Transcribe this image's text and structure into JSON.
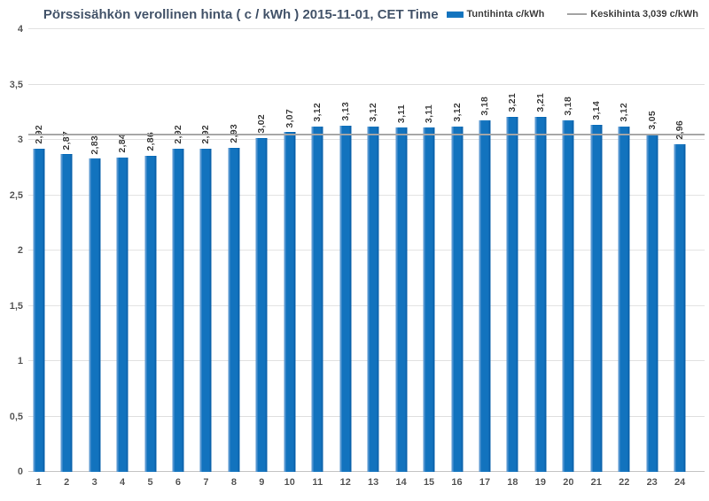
{
  "header": {
    "title": "Pörssisähkön verollinen hinta ( c / kWh ) 2015-11-01, CET Time"
  },
  "legend": {
    "series_label": "Tuntihinta c/kWh",
    "average_label": "Keskihinta 3,039 c/kWh"
  },
  "chart_data": {
    "type": "bar",
    "title": "Pörssisähkön verollinen hinta ( c / kWh ) 2015-11-01, CET Time",
    "categories": [
      "1",
      "2",
      "3",
      "4",
      "5",
      "6",
      "7",
      "8",
      "9",
      "10",
      "11",
      "12",
      "13",
      "14",
      "15",
      "16",
      "17",
      "18",
      "19",
      "20",
      "21",
      "22",
      "23",
      "24"
    ],
    "values": [
      2.92,
      2.87,
      2.83,
      2.84,
      2.86,
      2.92,
      2.92,
      2.93,
      3.02,
      3.07,
      3.12,
      3.13,
      3.12,
      3.11,
      3.11,
      3.12,
      3.18,
      3.21,
      3.21,
      3.18,
      3.14,
      3.12,
      3.05,
      2.96
    ],
    "value_labels": [
      "2,92",
      "2,87",
      "2,83",
      "2,84",
      "2,86",
      "2,92",
      "2,92",
      "2,93",
      "3,02",
      "3,07",
      "3,12",
      "3,13",
      "3,12",
      "3,11",
      "3,11",
      "3,12",
      "3,18",
      "3,21",
      "3,21",
      "3,18",
      "3,14",
      "3,12",
      "3,05",
      "2,96"
    ],
    "series_name": "Tuntihinta c/kWh",
    "average": 3.039,
    "average_label": "Keskihinta 3,039 c/kWh",
    "xlabel": "",
    "ylabel": "",
    "ylim": [
      0,
      4
    ],
    "y_ticks": [
      {
        "value": 0,
        "label": "0"
      },
      {
        "value": 0.5,
        "label": "0,5"
      },
      {
        "value": 1,
        "label": "1"
      },
      {
        "value": 1.5,
        "label": "1,5"
      },
      {
        "value": 2,
        "label": "2"
      },
      {
        "value": 2.5,
        "label": "2,5"
      },
      {
        "value": 3,
        "label": "3"
      },
      {
        "value": 3.5,
        "label": "3,5"
      },
      {
        "value": 4,
        "label": "4"
      }
    ],
    "grid": "horizontal",
    "legend_position": "top-right",
    "colors": {
      "bar": "#1273BE",
      "bar_highlight": "#5797D1",
      "bar_dark_edge": "#0D64AD",
      "average_line": "#A6A6A6",
      "gridline": "#E2E2E2",
      "axis_line": "#C6C6C6",
      "title_text": "#44546A",
      "label_text": "#404040",
      "tick_text": "#595959"
    }
  }
}
